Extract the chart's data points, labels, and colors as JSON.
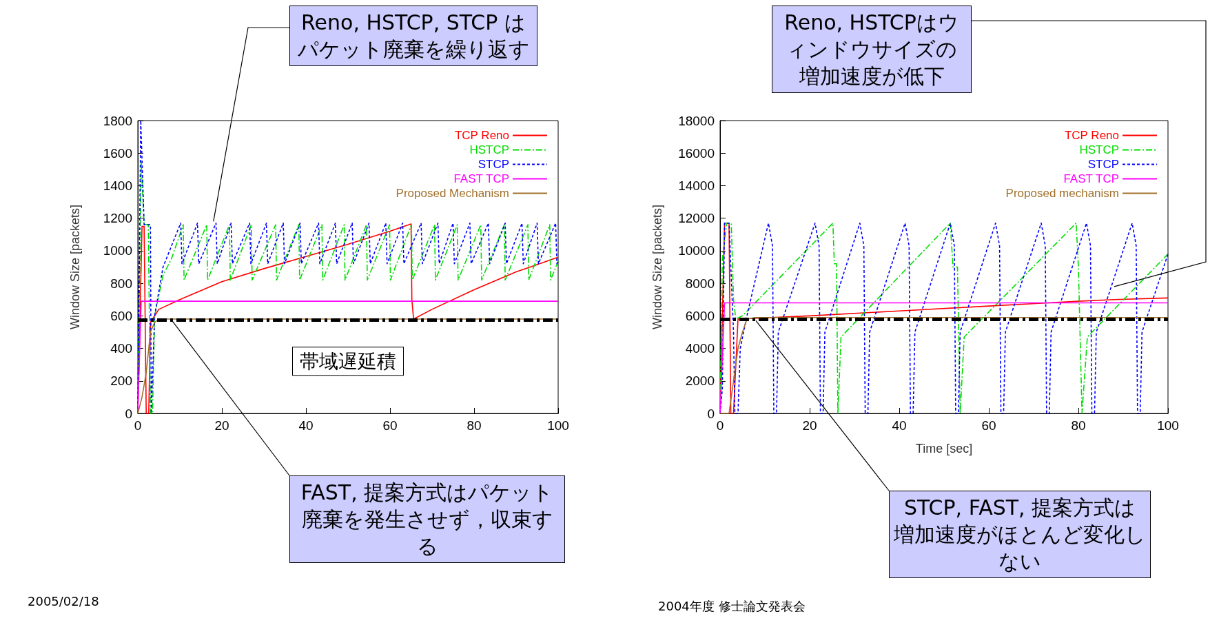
{
  "chart_data": [
    {
      "type": "line",
      "ylabel": "Window Size [packets]",
      "xlim": [
        0,
        100
      ],
      "xticks": [
        0,
        20,
        40,
        60,
        80,
        100
      ],
      "ylim": [
        0,
        1800
      ],
      "yticks": [
        0,
        200,
        400,
        600,
        800,
        1000,
        1200,
        1400,
        1600,
        1800
      ],
      "grid": false,
      "legend": "top right",
      "marker": "none",
      "annotations": [
        {
          "text": "Reno, HSTCP, STCP はパケット廃棄を繰り返す",
          "x": 18,
          "y": 1180
        },
        {
          "text": "FAST, 提案方式はパケット廃棄を発生させず，収束する",
          "x": 8,
          "y": 575
        },
        "2005/02/18"
      ],
      "ref_lines": [
        {
          "axis": "y",
          "value": 575,
          "label": "帯域遅延積",
          "color": "#000000",
          "line_style": "dashed"
        }
      ],
      "series": [
        {
          "name": "TCP Reno",
          "color": "#ff0000",
          "line_style": "solid",
          "x": [
            0,
            1,
            1.5,
            2,
            2.6,
            3,
            5,
            10,
            20,
            30,
            40,
            50,
            60,
            65,
            65.2,
            65.6,
            70,
            80,
            90,
            100
          ],
          "values": [
            0,
            1150,
            1150,
            0,
            0,
            560,
            640,
            700,
            810,
            890,
            965,
            1040,
            1120,
            1165,
            700,
            580,
            640,
            760,
            870,
            960
          ]
        },
        {
          "name": "HSTCP",
          "color": "#00dd00",
          "line_style": "dashed",
          "x": [
            0,
            0.8,
            1.5,
            2.5,
            3,
            3.5,
            4,
            6,
            8,
            10.8,
            11,
            16.4,
            16.6,
            21.8,
            22,
            27,
            27.2,
            32.8,
            33,
            38.3,
            38.5,
            43.8,
            44,
            49.1,
            49.3,
            54.4,
            54.6,
            59.9,
            60.1,
            65.1,
            65.3,
            70.6,
            70.8,
            76,
            76.2,
            81.6,
            81.8,
            87.2,
            87.4,
            92.8,
            93,
            98,
            98.2,
            100
          ],
          "values": [
            0,
            1550,
            1160,
            1160,
            0,
            0,
            600,
            850,
            950,
            1160,
            820,
            1160,
            820,
            1160,
            820,
            1160,
            820,
            1160,
            820,
            1160,
            820,
            1160,
            820,
            1160,
            820,
            1160,
            820,
            1160,
            820,
            1160,
            820,
            1160,
            820,
            1160,
            820,
            1160,
            820,
            1160,
            820,
            1160,
            820,
            1160,
            820,
            935
          ]
        },
        {
          "name": "STCP",
          "color": "#0000ff",
          "line_style": "dotted",
          "x": [
            0,
            0.7,
            1.5,
            3,
            3.2,
            4,
            6,
            10.2,
            10.5,
            14.2,
            14.5,
            18.6,
            18.9,
            22.2,
            22.5,
            26.6,
            26.9,
            30.6,
            30.9,
            34.6,
            34.9,
            38.6,
            38.9,
            43,
            43.3,
            47,
            47.3,
            51,
            51.3,
            55,
            55.3,
            59,
            59.3,
            63,
            63.3,
            67.4,
            67.7,
            71.4,
            71.7,
            75,
            75.3,
            79,
            79.3,
            83.4,
            83.7,
            87.4,
            87.7,
            91.4,
            91.7,
            95,
            95.3,
            99.4,
            99.7,
            100
          ],
          "values": [
            0,
            1800,
            1160,
            1160,
            0,
            600,
            900,
            1170,
            920,
            1170,
            920,
            1170,
            920,
            1170,
            920,
            1170,
            920,
            1170,
            920,
            1170,
            920,
            1170,
            920,
            1170,
            920,
            1170,
            920,
            1170,
            920,
            1170,
            920,
            1170,
            920,
            1170,
            920,
            1170,
            920,
            1170,
            920,
            1170,
            920,
            1170,
            920,
            1170,
            920,
            1170,
            920,
            1170,
            920,
            1170,
            920,
            1170,
            920,
            940
          ]
        },
        {
          "name": "FAST TCP",
          "color": "#ff00ff",
          "line_style": "solid",
          "x": [
            0,
            0.8,
            100
          ],
          "values": [
            0,
            690,
            690
          ]
        },
        {
          "name": "Proposed Mechanism",
          "color": "#a0702a",
          "line_style": "solid",
          "x": [
            0,
            1,
            2,
            3,
            4,
            5,
            100
          ],
          "values": [
            0,
            100,
            250,
            500,
            560,
            580,
            580
          ]
        }
      ]
    },
    {
      "type": "line",
      "xlabel": "Time [sec]",
      "ylabel": "Window Size [packets]",
      "xlim": [
        0,
        100
      ],
      "xticks": [
        0,
        20,
        40,
        60,
        80,
        100
      ],
      "ylim": [
        0,
        18000
      ],
      "yticks": [
        0,
        2000,
        4000,
        6000,
        8000,
        10000,
        12000,
        14000,
        16000,
        18000
      ],
      "grid": false,
      "legend": "top right",
      "marker": "none",
      "annotations": [
        {
          "text": "Reno, HSTCPはウィンドウサイズの増加速度が低下",
          "x": 88,
          "y": 7800
        },
        {
          "text": "STCP, FAST, 提案方式は増加速度がほとんど変化しない",
          "x": 8,
          "y": 5700
        },
        "2004年度 修士論文発表会"
      ],
      "ref_lines": [
        {
          "axis": "y",
          "value": 5800,
          "color": "#000000",
          "line_style": "dashed"
        }
      ],
      "series": [
        {
          "name": "TCP Reno",
          "color": "#ff0000",
          "line_style": "solid",
          "x": [
            0,
            1,
            2,
            2.4,
            3,
            4,
            20,
            40,
            60,
            80,
            88,
            100
          ],
          "values": [
            0,
            11700,
            11700,
            0,
            0,
            5800,
            6000,
            6300,
            6600,
            6900,
            7000,
            7100
          ]
        },
        {
          "name": "HSTCP",
          "color": "#00dd00",
          "line_style": "dashed",
          "x": [
            0,
            0.5,
            1.5,
            2.5,
            3,
            3.5,
            5,
            25.2,
            25.5,
            26,
            26.3,
            27,
            51.4,
            52,
            53,
            53.6,
            54.5,
            79.5,
            80,
            80.8,
            82,
            100
          ],
          "values": [
            0,
            9500,
            11700,
            11700,
            7000,
            5800,
            6000,
            11700,
            9200,
            9200,
            0,
            4700,
            11700,
            9000,
            9000,
            0,
            4700,
            11700,
            9000,
            0,
            4700,
            9800
          ]
        },
        {
          "name": "STCP",
          "color": "#0000ff",
          "line_style": "dotted",
          "x": [
            0,
            0.5,
            1,
            2,
            3,
            3.3,
            4,
            4.5,
            6,
            10.8,
            11.7,
            12,
            12.6,
            13,
            21.2,
            22.1,
            22.4,
            23,
            23.4,
            31.2,
            32.1,
            32.4,
            33,
            33.4,
            41.3,
            42.2,
            42.5,
            43.1,
            43.5,
            51.4,
            52.3,
            52.6,
            53.2,
            53.6,
            61.5,
            62.4,
            62.7,
            63.3,
            63.7,
            71.7,
            72.6,
            72.9,
            73.5,
            73.9,
            81.8,
            82.7,
            83,
            83.6,
            84,
            92,
            92.9,
            93.2,
            93.8,
            94.2,
            100
          ],
          "values": [
            0,
            1500,
            11700,
            11700,
            5000,
            0,
            0,
            4000,
            6000,
            11700,
            10300,
            0,
            0,
            5000,
            11700,
            10300,
            0,
            0,
            5000,
            11700,
            10300,
            0,
            0,
            5000,
            11700,
            10300,
            0,
            0,
            5000,
            11700,
            10300,
            0,
            0,
            5000,
            11700,
            10300,
            0,
            0,
            5000,
            11700,
            10300,
            0,
            0,
            5000,
            11700,
            10300,
            0,
            0,
            5000,
            11700,
            10300,
            0,
            0,
            5000,
            9800
          ]
        },
        {
          "name": "FAST TCP",
          "color": "#ff00ff",
          "line_style": "solid",
          "x": [
            0,
            1,
            100
          ],
          "values": [
            0,
            6800,
            6800
          ]
        },
        {
          "name": "Proposed mechanism",
          "color": "#a0702a",
          "line_style": "solid",
          "x": [
            0,
            2,
            3,
            4,
            5,
            6,
            8,
            100
          ],
          "values": [
            0,
            0,
            2000,
            4000,
            5000,
            5800,
            5900,
            5900
          ]
        }
      ]
    }
  ]
}
